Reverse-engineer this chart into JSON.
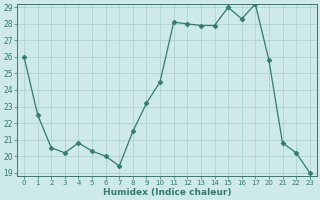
{
  "x": [
    0,
    1,
    2,
    3,
    4,
    5,
    6,
    7,
    8,
    9,
    10,
    11,
    12,
    13,
    14,
    15,
    16,
    17,
    20,
    21,
    22,
    23
  ],
  "y": [
    26,
    22.5,
    20.5,
    20.2,
    20.8,
    20.3,
    20.0,
    19.4,
    21.5,
    23.2,
    24.5,
    28.1,
    28.0,
    27.9,
    27.9,
    29.0,
    28.3,
    29.2,
    25.8,
    20.8,
    20.2,
    19.0
  ],
  "ylim_min": 19,
  "ylim_max": 29,
  "yticks": [
    19,
    20,
    21,
    22,
    23,
    24,
    25,
    26,
    27,
    28,
    29
  ],
  "xtick_labels": [
    "0",
    "1",
    "2",
    "3",
    "4",
    "5",
    "6",
    "7",
    "8",
    "9",
    "10",
    "11",
    "12",
    "13",
    "14",
    "15",
    "16",
    "17",
    "20",
    "21",
    "22",
    "23"
  ],
  "xlabel": "Humidex (Indice chaleur)",
  "line_color": "#2e7d6e",
  "bg_color": "#ceeae8",
  "grid_color": "#aacfcc",
  "marker": "D",
  "marker_size": 2.5
}
